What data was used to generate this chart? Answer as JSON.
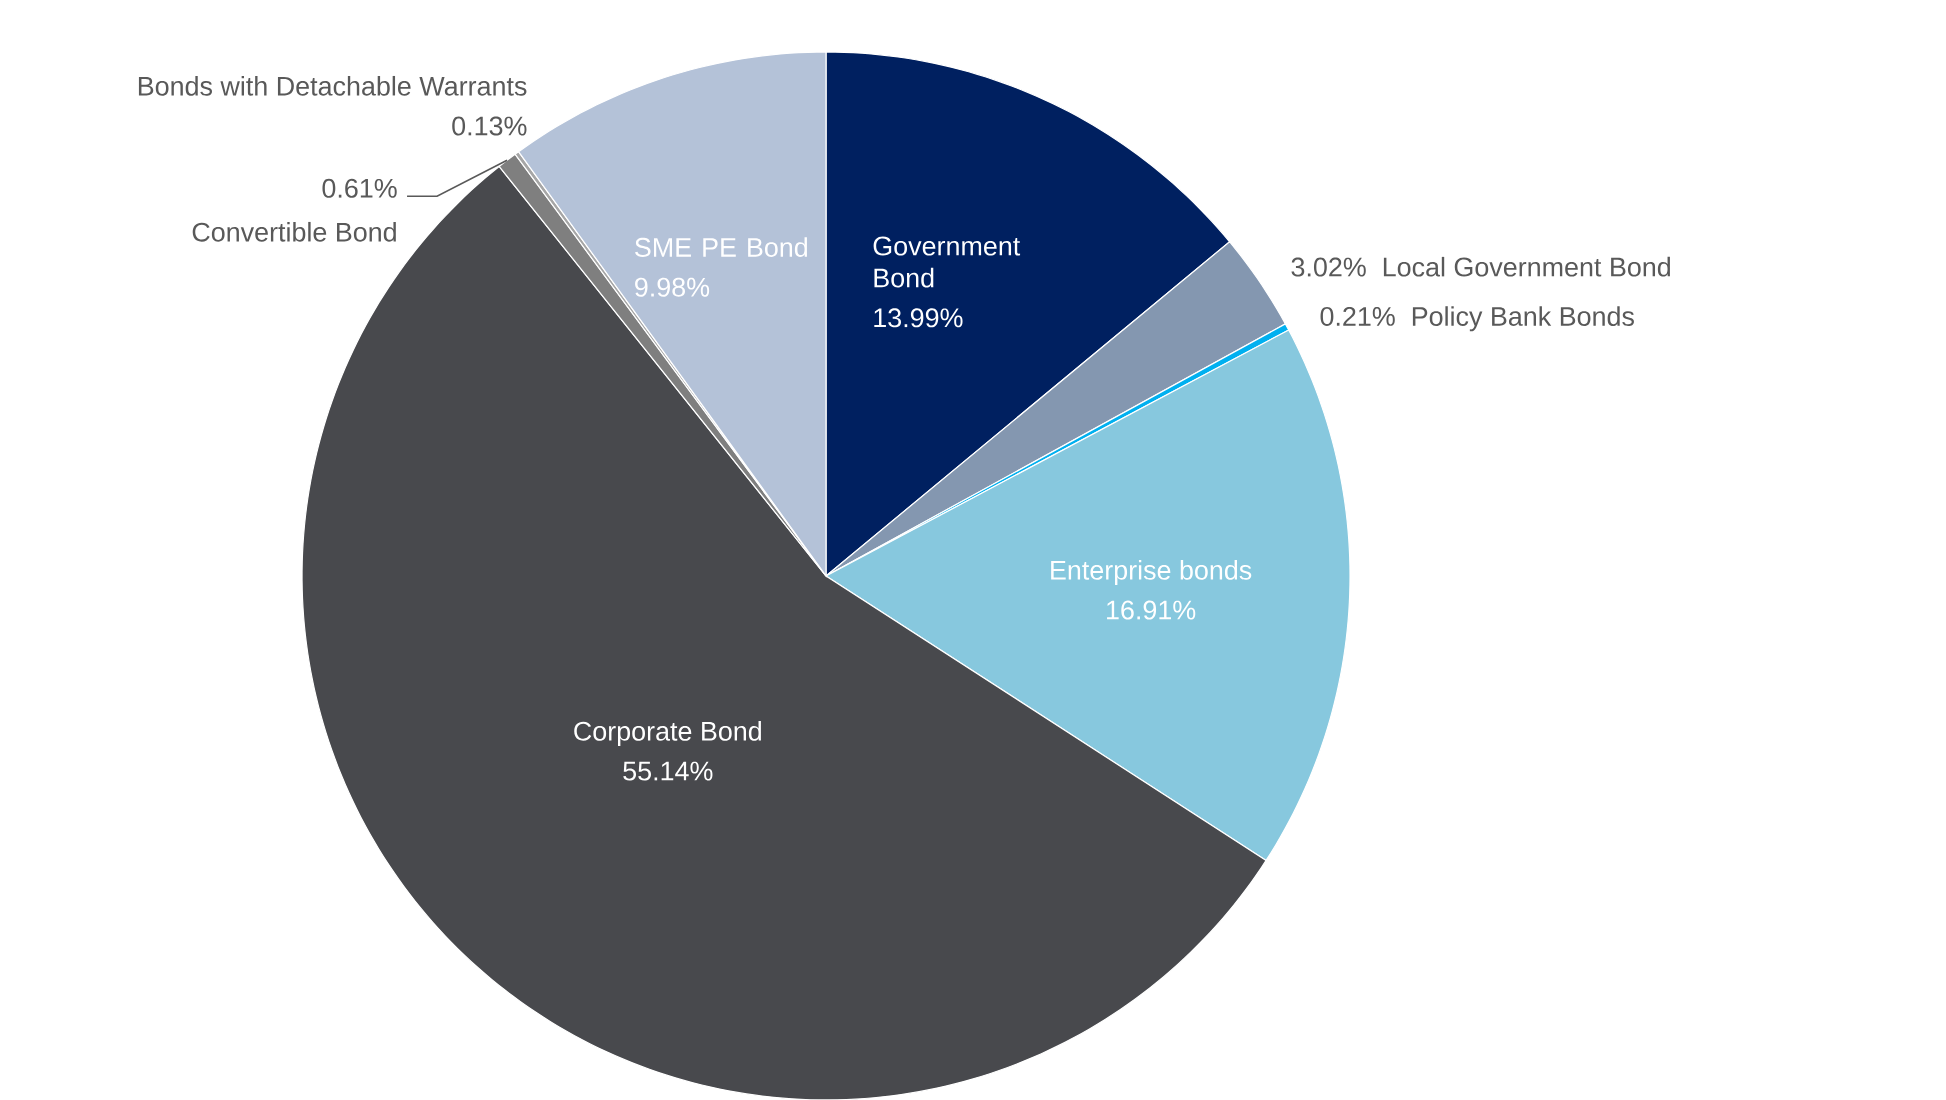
{
  "chart_data": {
    "type": "pie",
    "categories": [
      "Government Bond",
      "Local Government Bond",
      "Policy Bank Bonds",
      "Enterprise bonds",
      "Corporate Bond",
      "Convertible Bond",
      "Bonds with Detachable Warrants",
      "SME PE Bond"
    ],
    "values": [
      13.99,
      3.02,
      0.21,
      16.91,
      55.14,
      0.61,
      0.13,
      9.98
    ],
    "value_labels": [
      "13.99%",
      "3.02%",
      "0.21%",
      "16.91%",
      "55.14%",
      "0.61%",
      "0.13%",
      "9.98%"
    ],
    "colors": [
      "#002060",
      "#8497b0",
      "#00b0f0",
      "#87c8de",
      "#48494d",
      "#7f7f7f",
      "#a6a6a6",
      "#b4c2d8"
    ]
  }
}
